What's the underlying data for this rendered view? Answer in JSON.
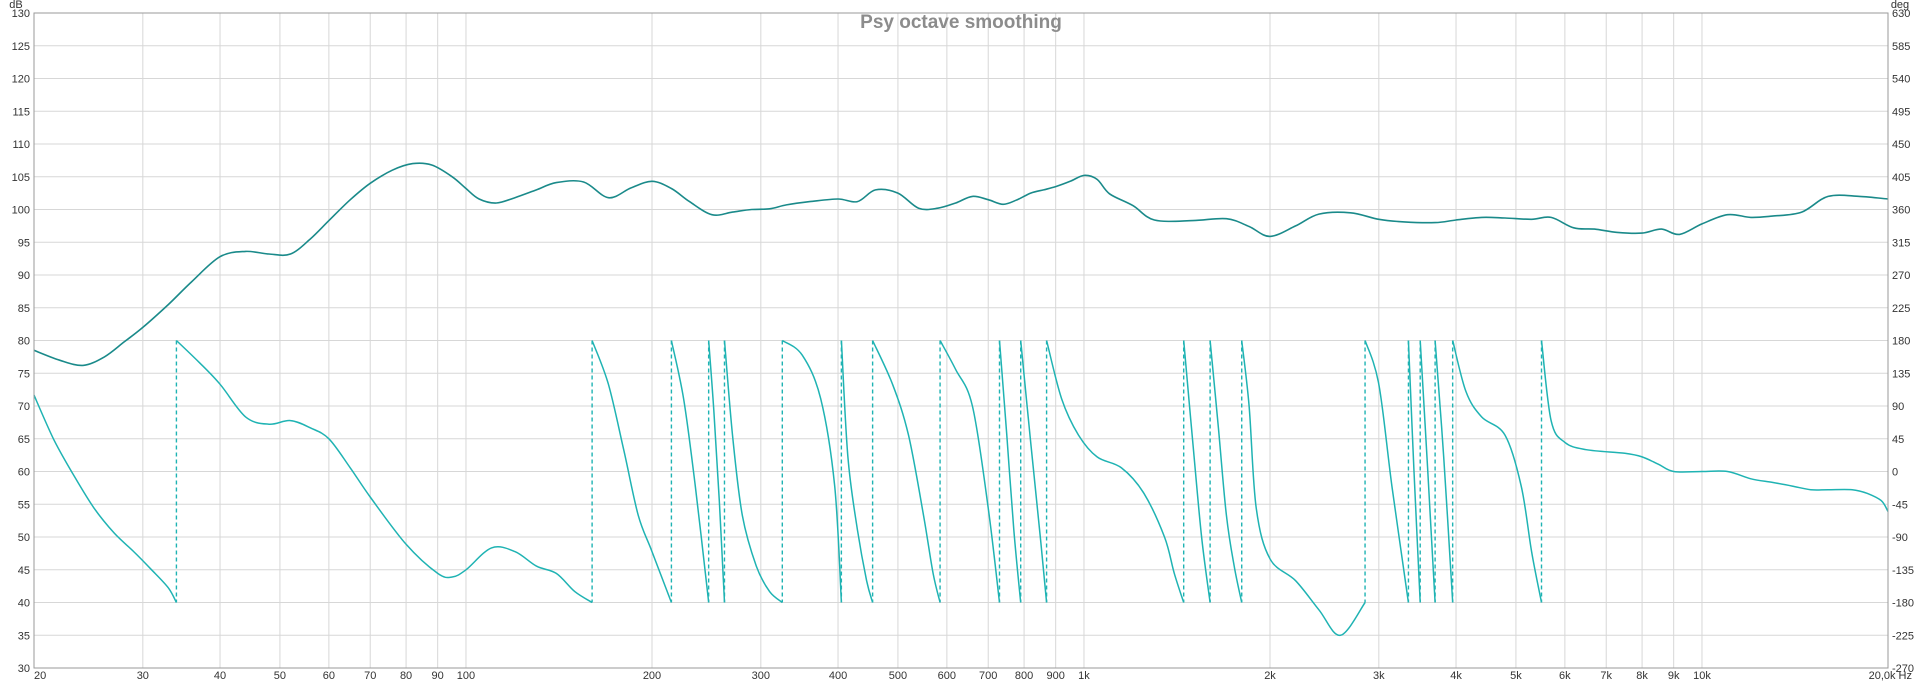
{
  "chart_data": {
    "type": "line",
    "title": "Psy octave smoothing",
    "x_scale": "log",
    "xlim": [
      20,
      20000
    ],
    "ylim": [
      30,
      130
    ],
    "y2lim": [
      -270,
      630
    ],
    "grid": true,
    "y_unit_label": "dB",
    "y2_unit_label": "deg",
    "x_ticks": [
      {
        "value": 20,
        "label": "20"
      },
      {
        "value": 30,
        "label": "30"
      },
      {
        "value": 40,
        "label": "40"
      },
      {
        "value": 50,
        "label": "50"
      },
      {
        "value": 60,
        "label": "60"
      },
      {
        "value": 70,
        "label": "70"
      },
      {
        "value": 80,
        "label": "80"
      },
      {
        "value": 90,
        "label": "90"
      },
      {
        "value": 100,
        "label": "100"
      },
      {
        "value": 200,
        "label": "200"
      },
      {
        "value": 300,
        "label": "300"
      },
      {
        "value": 400,
        "label": "400"
      },
      {
        "value": 500,
        "label": "500"
      },
      {
        "value": 600,
        "label": "600"
      },
      {
        "value": 700,
        "label": "700"
      },
      {
        "value": 800,
        "label": "800"
      },
      {
        "value": 900,
        "label": "900"
      },
      {
        "value": 1000,
        "label": "1k"
      },
      {
        "value": 2000,
        "label": "2k"
      },
      {
        "value": 3000,
        "label": "3k"
      },
      {
        "value": 4000,
        "label": "4k"
      },
      {
        "value": 5000,
        "label": "5k"
      },
      {
        "value": 6000,
        "label": "6k"
      },
      {
        "value": 7000,
        "label": "7k"
      },
      {
        "value": 8000,
        "label": "8k"
      },
      {
        "value": 9000,
        "label": "9k"
      },
      {
        "value": 10000,
        "label": "10k"
      },
      {
        "value": 20000,
        "label": "20,0k Hz"
      }
    ],
    "y_ticks": [
      "30",
      "35",
      "40",
      "45",
      "50",
      "55",
      "60",
      "65",
      "70",
      "75",
      "80",
      "85",
      "90",
      "95",
      "100",
      "105",
      "110",
      "115",
      "120",
      "125",
      "130"
    ],
    "y2_ticks": [
      "-270",
      "-225",
      "-180",
      "-135",
      "-90",
      "-45",
      "0",
      "45",
      "90",
      "135",
      "180",
      "225",
      "270",
      "315",
      "360",
      "405",
      "450",
      "495",
      "540",
      "585",
      "630"
    ],
    "series": [
      {
        "color": "#1a8a8a",
        "axis": "left",
        "x": [
          20,
          22,
          24,
          26,
          28,
          30,
          33,
          36,
          40,
          44,
          48,
          52,
          56,
          60,
          65,
          70,
          76,
          82,
          88,
          95,
          100,
          105,
          112,
          120,
          130,
          140,
          155,
          170,
          185,
          200,
          215,
          230,
          250,
          270,
          290,
          310,
          330,
          360,
          400,
          430,
          460,
          500,
          540,
          580,
          620,
          660,
          700,
          740,
          780,
          820,
          860,
          900,
          950,
          1000,
          1050,
          1100,
          1200,
          1300,
          1500,
          1700,
          1850,
          2000,
          2200,
          2400,
          2700,
          3000,
          3300,
          3700,
          4000,
          4400,
          4800,
          5300,
          5700,
          6200,
          6700,
          7300,
          8000,
          8600,
          9200,
          10000,
          11000,
          12000,
          13000,
          14500,
          16000,
          18000,
          20000
        ],
        "y": [
          78.5,
          77,
          76.2,
          77.5,
          79.8,
          82,
          85.5,
          89,
          92.8,
          93.6,
          93.2,
          93.2,
          95.5,
          98.3,
          101.5,
          104,
          106,
          107,
          106.8,
          105,
          103.2,
          101.6,
          101,
          101.8,
          103,
          104.1,
          104.2,
          101.8,
          103.3,
          104.3,
          103.2,
          101.2,
          99.2,
          99.6,
          100,
          100.1,
          100.7,
          101.2,
          101.6,
          101.2,
          103,
          102.5,
          100.2,
          100.2,
          101,
          102,
          101.5,
          100.8,
          101.5,
          102.5,
          103,
          103.5,
          104.3,
          105.2,
          104.6,
          102.4,
          100.6,
          98.4,
          98.3,
          98.6,
          97.4,
          95.9,
          97.5,
          99.3,
          99.5,
          98.5,
          98.1,
          98.0,
          98.4,
          98.8,
          98.7,
          98.5,
          98.8,
          97.2,
          97.0,
          96.5,
          96.4,
          97.0,
          96.2,
          97.8,
          99.2,
          98.8,
          99.0,
          99.6,
          102.0,
          102.0,
          101.6
        ]
      },
      {
        "color": "#1fb3b3",
        "axis": "right",
        "wraps": [
          34,
          160,
          215,
          247,
          262,
          325,
          405,
          455,
          585,
          730,
          790,
          870,
          1450,
          1600,
          1800,
          2850,
          3350,
          3500,
          3700,
          3950,
          5500
        ],
        "segments": [
          {
            "x": [
              20,
              21.5,
              23,
              25,
              27,
              29,
              31,
              33,
              34
            ],
            "y": [
              105,
              45,
              0,
              -50,
              -85,
              -110,
              -135,
              -160,
              -180
            ]
          },
          {
            "x": [
              34,
              37,
              40,
              44,
              48,
              52,
              56,
              60,
              65,
              70,
              80,
              90,
              95,
              100,
              110,
              120,
              130,
              140,
              150,
              160
            ],
            "y": [
              180,
              150,
              120,
              75,
              65,
              70,
              60,
              45,
              5,
              -35,
              -100,
              -140,
              -145,
              -135,
              -105,
              -110,
              -130,
              -140,
              -165,
              -180
            ]
          },
          {
            "x": [
              160,
              170,
              180,
              190,
              200,
              215
            ],
            "y": [
              180,
              120,
              30,
              -60,
              -110,
              -180
            ]
          },
          {
            "x": [
              215,
              225,
              235,
              247
            ],
            "y": [
              180,
              100,
              -20,
              -180
            ]
          },
          {
            "x": [
              247,
              252,
              257,
              262
            ],
            "y": [
              180,
              80,
              -40,
              -180
            ]
          },
          {
            "x": [
              262,
              270,
              280,
              295,
              310,
              325
            ],
            "y": [
              180,
              50,
              -60,
              -130,
              -165,
              -180
            ]
          },
          {
            "x": [
              325,
              350,
              375,
              395,
              405
            ],
            "y": [
              180,
              160,
              100,
              -20,
              -180
            ]
          },
          {
            "x": [
              405,
              415,
              430,
              445,
              455
            ],
            "y": [
              180,
              20,
              -80,
              -150,
              -180
            ]
          },
          {
            "x": [
              455,
              490,
              520,
              550,
              570,
              585
            ],
            "y": [
              180,
              120,
              50,
              -60,
              -140,
              -180
            ]
          },
          {
            "x": [
              585,
              620,
              660,
              700,
              730
            ],
            "y": [
              180,
              140,
              90,
              -50,
              -180
            ]
          },
          {
            "x": [
              730,
              750,
              770,
              790
            ],
            "y": [
              180,
              50,
              -80,
              -180
            ]
          },
          {
            "x": [
              790,
              820,
              850,
              870
            ],
            "y": [
              180,
              40,
              -90,
              -180
            ]
          },
          {
            "x": [
              870,
              920,
              980,
              1050,
              1150,
              1250,
              1350,
              1400,
              1450
            ],
            "y": [
              180,
              100,
              50,
              20,
              5,
              -30,
              -90,
              -140,
              -180
            ]
          },
          {
            "x": [
              1450,
              1500,
              1550,
              1600
            ],
            "y": [
              180,
              40,
              -90,
              -180
            ]
          },
          {
            "x": [
              1600,
              1650,
              1700,
              1750,
              1800
            ],
            "y": [
              180,
              60,
              -60,
              -130,
              -180
            ]
          },
          {
            "x": [
              1800,
              1850,
              1900,
              2000,
              2200,
              2400,
              2600,
              2850
            ],
            "y": [
              180,
              90,
              -50,
              -120,
              -150,
              -190,
              -225,
              -180
            ]
          },
          {
            "x": [
              2850,
              3000,
              3150,
              3350
            ],
            "y": [
              180,
              120,
              -20,
              -180
            ]
          },
          {
            "x": [
              3350,
              3420,
              3500
            ],
            "y": [
              180,
              0,
              -180
            ]
          },
          {
            "x": [
              3500,
              3600,
              3700
            ],
            "y": [
              180,
              0,
              -180
            ]
          },
          {
            "x": [
              3700,
              3820,
              3950
            ],
            "y": [
              180,
              20,
              -180
            ]
          },
          {
            "x": [
              3950,
              4150,
              4400,
              4800,
              5100,
              5300,
              5500
            ],
            "y": [
              180,
              110,
              75,
              50,
              -20,
              -110,
              -180
            ]
          },
          {
            "x": [
              5500,
              5700,
              6000,
              6500,
              7500,
              8000,
              8500,
              9000,
              10000,
              11000,
              12000,
              13000,
              14000,
              15000,
              16000,
              17500,
              18500,
              19500,
              20000
            ],
            "y": [
              180,
              70,
              40,
              30,
              25,
              20,
              10,
              0,
              0,
              0,
              -10,
              -15,
              -20,
              -25,
              -25,
              -25,
              -30,
              -40,
              -55
            ]
          }
        ]
      }
    ]
  }
}
